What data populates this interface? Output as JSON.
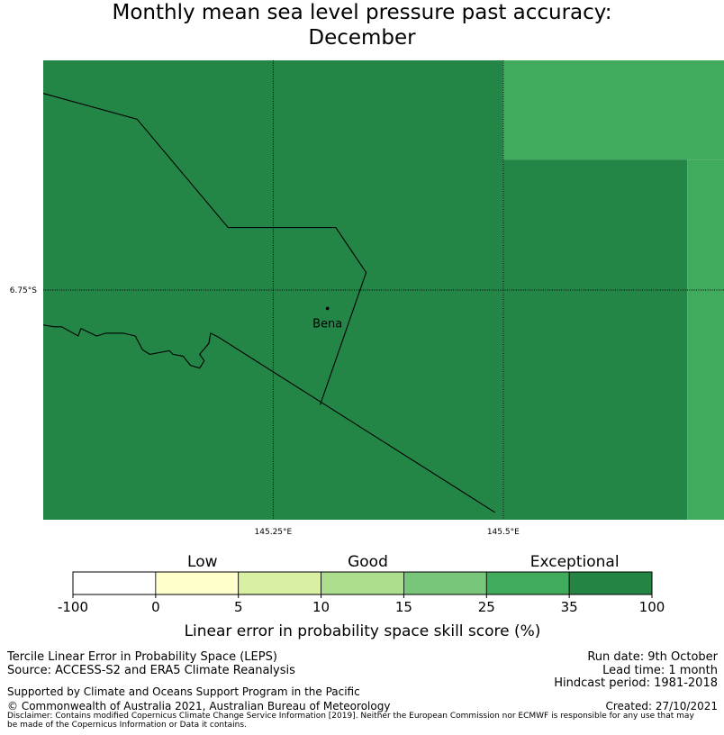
{
  "colors": {
    "map_dark": "#238647",
    "map_light": "#41ab5d",
    "border": "#000000",
    "gridline": "#000000"
  },
  "chart_data": {
    "type": "heatmap",
    "title_line1": "Monthly mean sea level pressure past accuracy:",
    "title_line2": "December",
    "x_ticks": [
      145.25,
      145.5
    ],
    "x_tick_labels": [
      "145.25°E",
      "145.5°E"
    ],
    "y_ticks": [
      -6.75
    ],
    "y_tick_labels": [
      "6.75°S"
    ],
    "xlim": [
      145.0,
      145.74
    ],
    "ylim": [
      -7.0,
      -6.5
    ],
    "cells": [
      {
        "x0": 145.0,
        "x1": 145.5,
        "y0": -7.0,
        "y1": -6.5,
        "category": "Exceptional",
        "color": "#238647"
      },
      {
        "x0": 145.5,
        "x1": 145.74,
        "y0": -6.608,
        "y1": -6.5,
        "category": "Good",
        "color": "#41ab5d"
      },
      {
        "x0": 145.5,
        "x1": 145.7,
        "y0": -7.0,
        "y1": -6.608,
        "category": "Exceptional",
        "color": "#238647"
      },
      {
        "x0": 145.7,
        "x1": 145.74,
        "y0": -7.0,
        "y1": -6.608,
        "category": "Good",
        "color": "#41ab5d"
      }
    ],
    "place": {
      "name": "Bena",
      "lon": 145.309,
      "lat": -6.77
    },
    "boundaries": [
      [
        [
          145.0,
          -6.536
        ],
        [
          145.102,
          -6.564
        ],
        [
          145.201,
          -6.682
        ],
        [
          145.318,
          -6.682
        ],
        [
          145.351,
          -6.731
        ],
        [
          145.301,
          -6.875
        ]
      ],
      [
        [
          145.19,
          -6.801
        ],
        [
          145.491,
          -6.992
        ]
      ],
      [
        [
          145.0,
          -6.788
        ],
        [
          145.012,
          -6.79
        ],
        [
          145.02,
          -6.79
        ],
        [
          145.038,
          -6.8
        ],
        [
          145.041,
          -6.792
        ],
        [
          145.058,
          -6.8
        ],
        [
          145.068,
          -6.797
        ],
        [
          145.087,
          -6.797
        ],
        [
          145.1,
          -6.8
        ],
        [
          145.108,
          -6.815
        ],
        [
          145.116,
          -6.82
        ],
        [
          145.137,
          -6.816
        ],
        [
          145.141,
          -6.82
        ],
        [
          145.152,
          -6.822
        ],
        [
          145.16,
          -6.832
        ],
        [
          145.17,
          -6.835
        ],
        [
          145.175,
          -6.827
        ],
        [
          145.17,
          -6.82
        ],
        [
          145.18,
          -6.808
        ],
        [
          145.182,
          -6.797
        ],
        [
          145.19,
          -6.801
        ]
      ]
    ],
    "colorbar": {
      "boundaries": [
        "-100",
        "0",
        "5",
        "10",
        "15",
        "25",
        "35",
        "100"
      ],
      "colors": [
        "#ffffff",
        "#ffffcc",
        "#d9f0a3",
        "#addd8e",
        "#78c679",
        "#41ab5d",
        "#238443"
      ],
      "category_labels": [
        {
          "text": "Low",
          "at": 1.5
        },
        {
          "text": "Good",
          "at": 3.5
        },
        {
          "text": "Exceptional",
          "at": 6.0
        }
      ],
      "label": "Linear error in probability space skill score (%)"
    }
  },
  "footer": {
    "left_line1": "Tercile Linear Error in Probability Space (LEPS)",
    "left_line2": "Source: ACCESS-S2 and ERA5 Climate Reanalysis",
    "right_line1": "Run date: 9th October",
    "right_line2": "Lead time: 1 month",
    "right_line3": "Hindcast period: 1981-2018",
    "supported": "Supported by Climate and Oceans Support Program in the Pacific",
    "copyright": "© Commonwealth of Australia 2021, Australian Bureau of Meteorology",
    "created": "Created: 27/10/2021",
    "disclaimer_line1": "Disclaimer: Contains modified Copernicus Climate Change Service Information [2019]. Neither the European Commission nor ECMWF is responsible for any use that may",
    "disclaimer_line2": "be made of the Copernicus Information or Data it contains."
  }
}
